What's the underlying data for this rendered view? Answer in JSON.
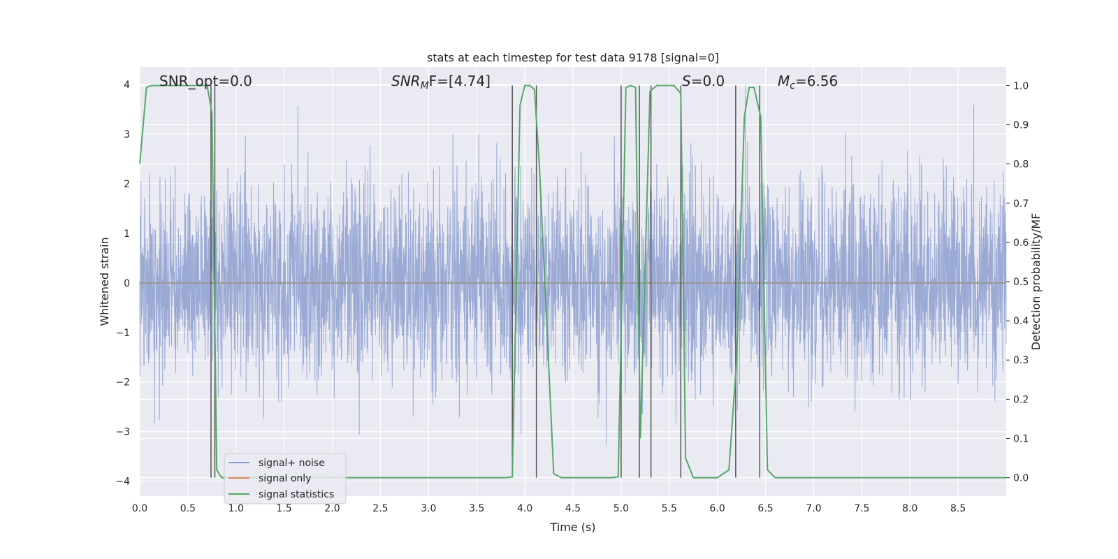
{
  "chart_data": {
    "type": "line",
    "title": "stats at each timestep for test data 9178 [signal=0]",
    "xlabel": "Time (s)",
    "ylabel_left": "Whitened strain",
    "ylabel_right": "Detection probability/MF",
    "xlim": [
      0.0,
      9.0
    ],
    "ylim_left": [
      -4.3,
      4.35
    ],
    "ylim_right": [
      -0.047,
      1.047
    ],
    "x_ticks": [
      "0.0",
      "0.5",
      "1.0",
      "1.5",
      "2.0",
      "2.5",
      "3.0",
      "3.5",
      "4.0",
      "4.5",
      "5.0",
      "5.5",
      "6.0",
      "6.5",
      "7.0",
      "7.5",
      "8.0",
      "8.5"
    ],
    "y_ticks_left": [
      "4",
      "3",
      "2",
      "1",
      "0",
      "−1",
      "−2",
      "−3",
      "−4"
    ],
    "y_ticks_right": [
      "1.0",
      "0.9",
      "0.8",
      "0.7",
      "0.6",
      "0.5",
      "0.4",
      "0.3",
      "0.2",
      "0.1",
      "0.0"
    ],
    "grid": true,
    "legend_position": "lower-left",
    "annotations": {
      "snr_opt": "SNR_opt=0.0",
      "snr_mf_italic": "SNR",
      "snr_mf_sub": "M",
      "snr_mf_tail": "F=[4.74]",
      "s_italic": "S",
      "s_tail": "=0.0",
      "mc_italic": "M",
      "mc_sub": "c",
      "mc_tail": "=6.56"
    },
    "series": [
      {
        "name": "signal+ noise",
        "color": "#8c9fd0",
        "description_values": "noise-like whitened strain, mostly within ±2.3 with spikes to about ±4",
        "noise_seed": 9178,
        "noise_sigma": 1.0
      },
      {
        "name": "signal only",
        "color": "#dd8452",
        "values_constant": 0.0
      },
      {
        "name": "signal statistics",
        "color": "#55a868",
        "axis": "right",
        "x": [
          0.0,
          0.07,
          0.12,
          0.2,
          0.3,
          0.4,
          0.5,
          0.6,
          0.7,
          0.75,
          0.8,
          0.85,
          0.9,
          1.0,
          1.5,
          2.0,
          2.5,
          3.0,
          3.5,
          3.8,
          3.87,
          3.95,
          4.0,
          4.05,
          4.1,
          4.15,
          4.3,
          4.38,
          4.5,
          4.9,
          4.97,
          5.05,
          5.1,
          5.15,
          5.2,
          5.3,
          5.37,
          5.45,
          5.55,
          5.62,
          5.67,
          5.75,
          5.85,
          6.0,
          6.12,
          6.2,
          6.28,
          6.33,
          6.38,
          6.45,
          6.52,
          6.6,
          7.0,
          7.5,
          8.0,
          8.5,
          9.0
        ],
        "y": [
          0.8,
          0.995,
          1.0,
          1.0,
          1.0,
          1.0,
          1.0,
          1.0,
          1.0,
          0.93,
          0.02,
          0.0,
          0.0,
          0.0,
          0.0,
          0.0,
          0.0,
          0.0,
          0.0,
          0.0,
          0.002,
          0.95,
          1.0,
          1.0,
          0.99,
          0.8,
          0.01,
          0.0,
          0.0,
          0.0,
          0.002,
          0.995,
          1.0,
          0.995,
          0.1,
          0.985,
          1.0,
          1.0,
          1.0,
          0.98,
          0.05,
          0.0,
          0.0,
          0.0,
          0.02,
          0.3,
          0.92,
          0.995,
          0.995,
          0.92,
          0.02,
          0.0,
          0.0,
          0.0,
          0.0,
          0.0,
          0.0
        ]
      }
    ],
    "vertical_markers_x": [
      0.74,
      0.78,
      3.87,
      4.12,
      5.0,
      5.19,
      5.31,
      5.62,
      6.19,
      6.44
    ]
  }
}
